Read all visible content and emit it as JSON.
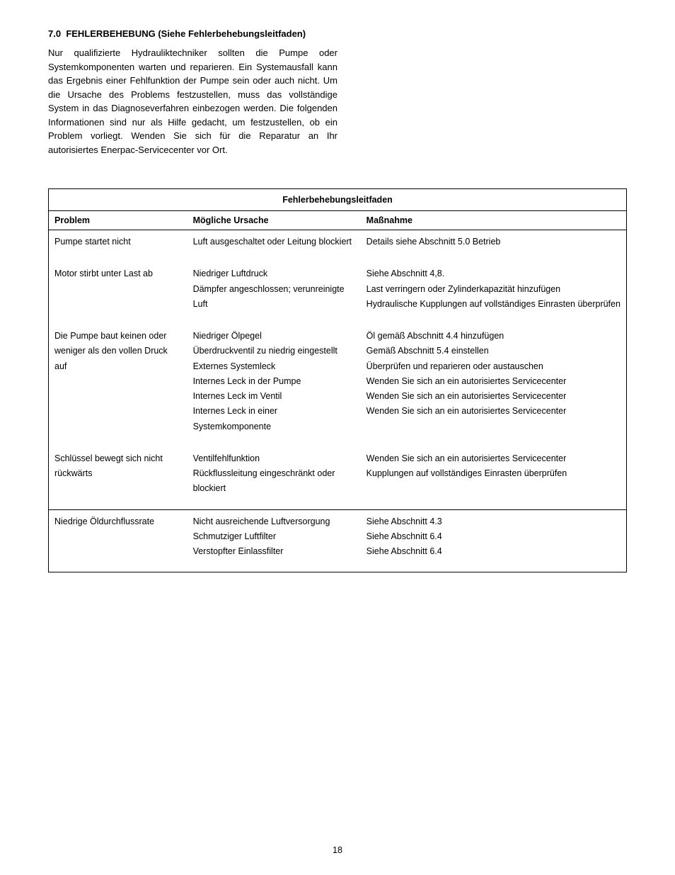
{
  "section": {
    "number": "7.0",
    "title": "FEHLERBEHEBUNG (Siehe Fehlerbehebungsleitfaden)",
    "intro": "Nur qualifizierte Hydrauliktechniker sollten die Pumpe oder Systemkomponenten warten und reparieren. Ein Systemausfall kann das Ergebnis einer Fehlfunktion der Pumpe sein oder auch nicht. Um die Ursache des Problems festzustellen, muss das vollständige System in das Diagnoseverfahren einbezogen werden. Die folgenden Informationen sind nur als Hilfe gedacht, um festzustellen, ob ein Problem vorliegt. Wenden Sie sich für die Reparatur an Ihr autorisiertes Enerpac-Servicecenter vor Ort."
  },
  "table": {
    "title": "Fehlerbehebungsleitfaden",
    "headers": {
      "problem": "Problem",
      "cause": "Mögliche Ursache",
      "action": "Maßnahme"
    },
    "rows": [
      {
        "problem": "Pumpe startet nicht",
        "causes": [
          "Luft ausgeschaltet oder Leitung blockiert"
        ],
        "actions": [
          "Details siehe Abschnitt 5.0 Betrieb"
        ]
      },
      {
        "problem": "Motor stirbt unter Last ab",
        "causes": [
          "Niedriger Luftdruck",
          "Dämpfer angeschlossen; verunreinigte Luft"
        ],
        "actions": [
          "Siehe Abschnitt 4,8.",
          "Last verringern oder Zylinderkapazität hinzufügen",
          "Hydraulische Kupplungen auf vollständiges Einrasten überprüfen"
        ]
      },
      {
        "problem": "Die Pumpe baut keinen oder weniger als den vollen Druck auf",
        "causes": [
          "Niedriger Ölpegel",
          "Überdruckventil zu niedrig eingestellt",
          "Externes Systemleck",
          "Internes Leck in der Pumpe",
          "Internes Leck im Ventil",
          "Internes Leck in einer Systemkomponente"
        ],
        "actions": [
          "Öl gemäß Abschnitt 4.4 hinzufügen",
          "Gemäß Abschnitt 5.4 einstellen",
          "Überprüfen und reparieren oder austauschen",
          "Wenden Sie sich an ein autorisiertes Servicecenter",
          "Wenden Sie sich an ein autorisiertes Servicecenter",
          "Wenden Sie sich an ein autorisiertes Servicecenter"
        ]
      },
      {
        "problem": "Schlüssel bewegt sich nicht rückwärts",
        "causes": [
          "Ventilfehlfunktion",
          "Rückflussleitung eingeschränkt oder blockiert"
        ],
        "actions": [
          "Wenden Sie sich an ein autorisiertes Servicecenter",
          "Kupplungen auf vollständiges Einrasten überprüfen"
        ]
      },
      {
        "problem": "Niedrige Öldurchflussrate",
        "causes": [
          "Nicht ausreichende Luftversorgung",
          "Schmutziger Luftfilter",
          "Verstopfter Einlassfilter"
        ],
        "actions": [
          "Siehe Abschnitt 4.3",
          "Siehe Abschnitt 6.4",
          "Siehe Abschnitt 6.4"
        ]
      }
    ]
  },
  "page_number": "18"
}
